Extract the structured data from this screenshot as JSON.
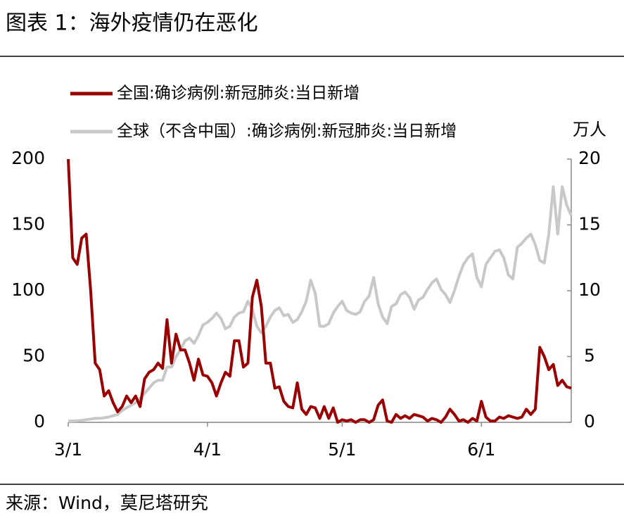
{
  "chart_data": {
    "type": "line",
    "title": "图表 1：海外疫情仍在恶化",
    "source": "来源：Wind，莫尼塔研究",
    "y2_label": "万人",
    "categories": [
      "3/1",
      null,
      null,
      null,
      null,
      null,
      null,
      null,
      null,
      null,
      null,
      null,
      null,
      null,
      null,
      null,
      null,
      null,
      null,
      null,
      null,
      null,
      null,
      null,
      null,
      null,
      null,
      null,
      null,
      null,
      null,
      "4/1",
      null,
      null,
      null,
      null,
      null,
      null,
      null,
      null,
      null,
      null,
      null,
      null,
      null,
      null,
      null,
      null,
      null,
      null,
      null,
      null,
      null,
      null,
      null,
      null,
      null,
      null,
      null,
      null,
      null,
      "5/1",
      null,
      null,
      null,
      null,
      null,
      null,
      null,
      null,
      null,
      null,
      null,
      null,
      null,
      null,
      null,
      null,
      null,
      null,
      null,
      null,
      null,
      null,
      null,
      null,
      null,
      null,
      null,
      null,
      null,
      null,
      "6/1",
      null,
      null,
      null,
      null,
      null,
      null,
      null,
      null,
      null,
      null,
      null,
      null,
      null,
      null,
      null,
      null,
      null,
      null,
      null,
      null
    ],
    "series": [
      {
        "name": "全国:确诊病例:新冠肺炎:当日新增",
        "color": "#9b0000",
        "axis": "y",
        "values": [
          200,
          125,
          120,
          140,
          143,
          100,
          45,
          40,
          20,
          24,
          15,
          8,
          12,
          20,
          15,
          20,
          12,
          33,
          38,
          40,
          45,
          41,
          78,
          45,
          67,
          55,
          55,
          45,
          32,
          48,
          36,
          35,
          30,
          20,
          30,
          38,
          35,
          62,
          62,
          42,
          45,
          95,
          108,
          88,
          45,
          45,
          26,
          27,
          16,
          12,
          11,
          30,
          10,
          6,
          12,
          11,
          3,
          12,
          3,
          11,
          0,
          2,
          1,
          2,
          0,
          2,
          2,
          0,
          2,
          13,
          17,
          1,
          0,
          6,
          3,
          5,
          3,
          6,
          5,
          4,
          1,
          3,
          2,
          0,
          4,
          10,
          6,
          1,
          2,
          0,
          3,
          1,
          16,
          4,
          1,
          1,
          4,
          3,
          5,
          4,
          3,
          4,
          10,
          6,
          10,
          57,
          50,
          40,
          44,
          28,
          32,
          27,
          26
        ]
      },
      {
        "name": "全球（不含中国）:确诊病例:新冠肺炎:当日新增",
        "color": "#c8c8c8",
        "axis": "y2",
        "values": [
          0.1,
          0.1,
          0.12,
          0.15,
          0.2,
          0.25,
          0.3,
          0.3,
          0.35,
          0.4,
          0.5,
          0.6,
          0.9,
          1.1,
          1.3,
          1.5,
          1.8,
          2.2,
          2.6,
          3.0,
          3.2,
          3.2,
          4.2,
          4.2,
          5.0,
          5.5,
          6.2,
          6.4,
          6.0,
          6.6,
          7.4,
          7.6,
          7.9,
          8.3,
          7.9,
          7.1,
          7.3,
          8.0,
          8.3,
          8.4,
          9.2,
          8.6,
          7.3,
          6.8,
          7.3,
          8.0,
          8.5,
          8.7,
          8.1,
          8.2,
          7.6,
          7.8,
          8.4,
          9.2,
          10.8,
          9.8,
          7.3,
          7.3,
          7.5,
          8.3,
          8.8,
          9.2,
          8.5,
          8.3,
          8.2,
          8.4,
          9.2,
          9.6,
          11.0,
          9.0,
          8.0,
          7.5,
          8.8,
          9.0,
          9.7,
          9.9,
          9.5,
          8.6,
          9.3,
          9.5,
          10.1,
          10.6,
          10.9,
          10.1,
          9.7,
          9.1,
          10.0,
          11.1,
          12.0,
          12.5,
          12.8,
          11.0,
          10.3,
          12.0,
          12.5,
          13.0,
          13.1,
          12.5,
          11.2,
          10.9,
          13.3,
          13.6,
          14.0,
          14.3,
          13.5,
          12.3,
          12.1,
          14.3,
          17.9,
          14.3,
          17.9,
          16.5,
          15.7
        ]
      }
    ],
    "ylim": [
      0,
      200
    ],
    "yticks": [
      0,
      50,
      100,
      150,
      200
    ],
    "y2lim": [
      0,
      20
    ],
    "y2ticks": [
      0,
      5,
      10,
      15,
      20
    ],
    "grid": false
  }
}
